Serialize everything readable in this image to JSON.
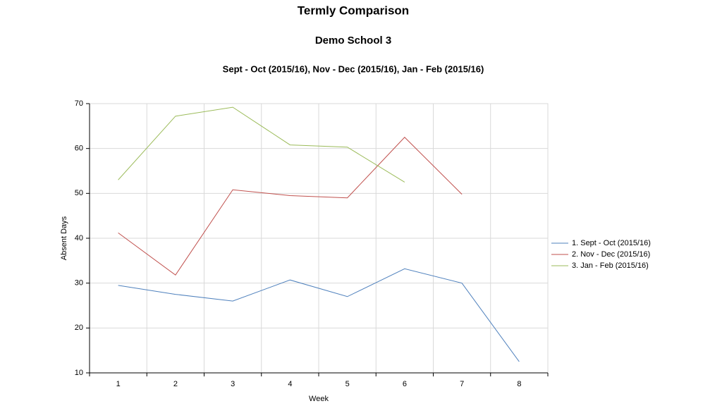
{
  "chart_data": {
    "type": "line",
    "title": "Termly Comparison",
    "subtitle": "Demo School 3",
    "subtitle2": "Sept - Oct (2015/16), Nov - Dec (2015/16), Jan - Feb (2015/16)",
    "xlabel": "Week",
    "ylabel": "Absent Days",
    "categories": [
      "1",
      "2",
      "3",
      "4",
      "5",
      "6",
      "7",
      "8"
    ],
    "series": [
      {
        "name": "1. Sept - Oct (2015/16)",
        "color": "#4f81bd",
        "values": [
          29.5,
          27.5,
          26,
          30.7,
          27,
          33.2,
          30,
          12.5
        ]
      },
      {
        "name": "2. Nov - Dec (2015/16)",
        "color": "#c0504d",
        "values": [
          41.2,
          31.8,
          50.8,
          49.5,
          49,
          62.5,
          49.8,
          null
        ]
      },
      {
        "name": "3. Jan - Feb (2015/16)",
        "color": "#9bbb59",
        "values": [
          53,
          67.2,
          69.2,
          60.8,
          60.3,
          52.5,
          null,
          null
        ]
      }
    ],
    "ylim": [
      10,
      70
    ],
    "yticks": [
      10,
      20,
      30,
      40,
      50,
      60,
      70
    ],
    "grid": true,
    "legend": "right"
  }
}
